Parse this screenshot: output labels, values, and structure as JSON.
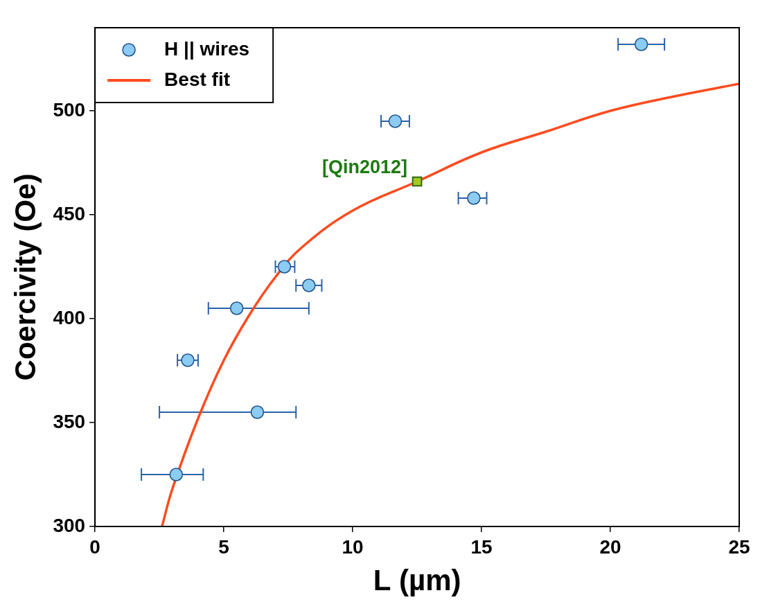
{
  "chart_data": {
    "type": "scatter",
    "xlabel": "L (µm)",
    "ylabel": "Coercivity (Oe)",
    "xlim": [
      0,
      25
    ],
    "xticks": [
      0,
      5,
      10,
      15,
      20,
      25
    ],
    "ylim": [
      300,
      540
    ],
    "yticks": [
      300,
      350,
      400,
      450,
      500
    ],
    "grid": false,
    "legend": "upper left",
    "series": [
      {
        "name": "H || wires",
        "type": "scatter",
        "marker": "circle",
        "color": "#8ccbf2",
        "x": [
          3.15,
          3.6,
          5.5,
          6.3,
          7.35,
          8.3,
          11.65,
          14.7,
          21.2
        ],
        "values": [
          325,
          380,
          405,
          355,
          425,
          416,
          495,
          458,
          532
        ],
        "xerr_low": [
          1.8,
          3.2,
          4.4,
          2.5,
          7.0,
          7.8,
          11.1,
          14.1,
          20.3
        ],
        "xerr_high": [
          4.2,
          4.0,
          8.3,
          7.8,
          7.75,
          8.8,
          12.2,
          15.2,
          22.1
        ]
      },
      {
        "name": "Best fit",
        "type": "line",
        "line_style": "solid",
        "color": "#ff4b1f",
        "x": [
          2.6,
          3,
          4,
          5,
          6,
          7,
          8,
          10,
          12.5,
          15,
          17.5,
          20,
          22.5,
          25
        ],
        "values": [
          300,
          318,
          352,
          380,
          402,
          420,
          434,
          452,
          466,
          480,
          490,
          500,
          507,
          513
        ]
      }
    ],
    "annotations": [
      {
        "text": "[Qin2012]",
        "x": 12.5,
        "y": 466,
        "marker": "square",
        "color": "#a8c81e"
      }
    ]
  }
}
